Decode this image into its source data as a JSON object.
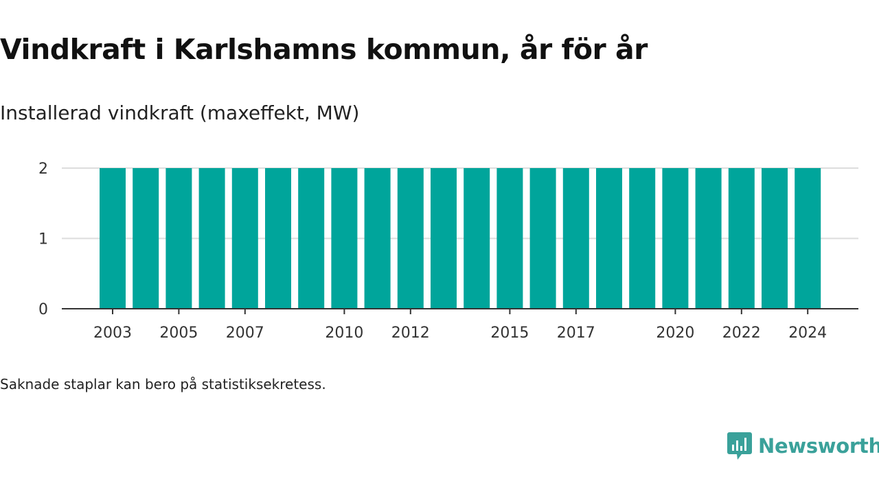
{
  "title": "Vindkraft i Karlshamns kommun, år för år",
  "subtitle": "Installerad vindkraft (maxeffekt, MW)",
  "footnote": "Saknade staplar kan bero på statistiksekretess.",
  "brand": "Newsworthy",
  "colors": {
    "bar": "#00a59b",
    "grid": "#dddddd",
    "axis": "#333333",
    "brand": "#3aa19a"
  },
  "chart_data": {
    "type": "bar",
    "categories": [
      2003,
      2004,
      2005,
      2006,
      2007,
      2008,
      2009,
      2010,
      2011,
      2012,
      2013,
      2014,
      2015,
      2016,
      2017,
      2018,
      2019,
      2020,
      2021,
      2022,
      2023,
      2024
    ],
    "values": [
      2,
      2,
      2,
      2,
      2,
      2,
      2,
      2,
      2,
      2,
      2,
      2,
      2,
      2,
      2,
      2,
      2,
      2,
      2,
      2,
      2,
      2
    ],
    "title": "Vindkraft i Karlshamns kommun, år för år",
    "subtitle": "Installerad vindkraft (maxeffekt, MW)",
    "xlabel": "",
    "ylabel": "",
    "ylim": [
      0,
      2
    ],
    "yticks": [
      0,
      1,
      2
    ],
    "xticks": [
      2003,
      2005,
      2007,
      2010,
      2012,
      2015,
      2017,
      2020,
      2022,
      2024
    ],
    "grid": true,
    "legend": "none"
  }
}
